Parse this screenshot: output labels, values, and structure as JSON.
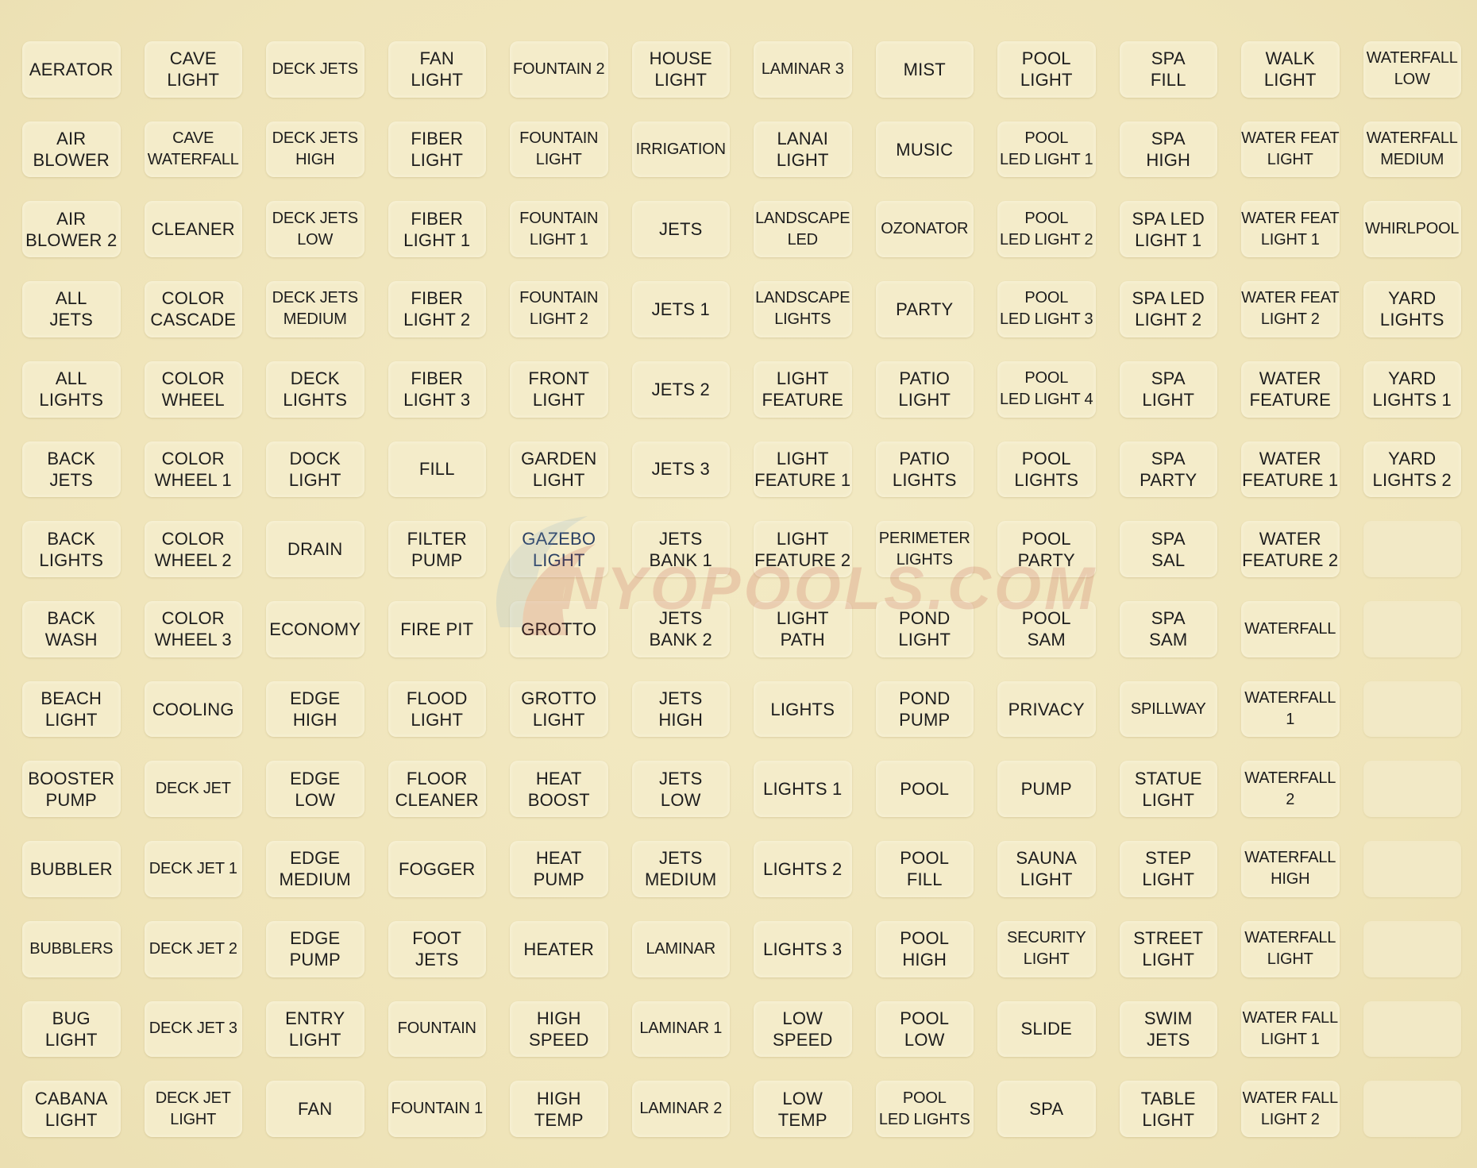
{
  "watermark": {
    "text": "INYOPOOLS.COM"
  },
  "colors": {
    "background": "#f1e7bf",
    "label": "#f4ecca",
    "text": "#1d1d1d",
    "accent_text": "#2a3f63",
    "watermark": "#b8322a"
  },
  "labels": [
    {
      "text": "AERATOR"
    },
    {
      "text": "AIR\nBLOWER"
    },
    {
      "text": "AIR\nBLOWER 2"
    },
    {
      "text": "ALL\nJETS"
    },
    {
      "text": "ALL\nLIGHTS"
    },
    {
      "text": "BACK\nJETS"
    },
    {
      "text": "BACK\nLIGHTS"
    },
    {
      "text": "BACK\nWASH"
    },
    {
      "text": "BEACH\nLIGHT"
    },
    {
      "text": "BOOSTER\nPUMP"
    },
    {
      "text": "BUBBLER"
    },
    {
      "text": "BUBBLERS"
    },
    {
      "text": "BUG\nLIGHT"
    },
    {
      "text": "CABANA\nLIGHT"
    },
    {
      "text": "CAVE\nLIGHT"
    },
    {
      "text": "CAVE\nWATERFALL"
    },
    {
      "text": "CLEANER"
    },
    {
      "text": "COLOR\nCASCADE"
    },
    {
      "text": "COLOR\nWHEEL"
    },
    {
      "text": "COLOR\nWHEEL 1"
    },
    {
      "text": "COLOR\nWHEEL 2"
    },
    {
      "text": "COLOR\nWHEEL 3"
    },
    {
      "text": "COOLING"
    },
    {
      "text": "DECK JET"
    },
    {
      "text": "DECK JET 1"
    },
    {
      "text": "DECK JET 2"
    },
    {
      "text": "DECK JET 3"
    },
    {
      "text": "DECK JET\nLIGHT"
    },
    {
      "text": "DECK JETS"
    },
    {
      "text": "DECK JETS\nHIGH"
    },
    {
      "text": "DECK JETS\nLOW"
    },
    {
      "text": "DECK JETS\nMEDIUM"
    },
    {
      "text": "DECK\nLIGHTS"
    },
    {
      "text": "DOCK\nLIGHT"
    },
    {
      "text": "DRAIN"
    },
    {
      "text": "ECONOMY"
    },
    {
      "text": "EDGE\nHIGH"
    },
    {
      "text": "EDGE\nLOW"
    },
    {
      "text": "EDGE\nMEDIUM"
    },
    {
      "text": "EDGE\nPUMP"
    },
    {
      "text": "ENTRY\nLIGHT"
    },
    {
      "text": "FAN"
    },
    {
      "text": "FAN\nLIGHT"
    },
    {
      "text": "FIBER\nLIGHT"
    },
    {
      "text": "FIBER\nLIGHT 1"
    },
    {
      "text": "FIBER\nLIGHT 2"
    },
    {
      "text": "FIBER\nLIGHT 3"
    },
    {
      "text": "FILL"
    },
    {
      "text": "FILTER\nPUMP"
    },
    {
      "text": "FIRE PIT"
    },
    {
      "text": "FLOOD\nLIGHT"
    },
    {
      "text": "FLOOR\nCLEANER"
    },
    {
      "text": "FOGGER"
    },
    {
      "text": "FOOT\nJETS"
    },
    {
      "text": "FOUNTAIN"
    },
    {
      "text": "FOUNTAIN 1"
    },
    {
      "text": "FOUNTAIN 2"
    },
    {
      "text": "FOUNTAIN\nLIGHT"
    },
    {
      "text": "FOUNTAIN\nLIGHT 1"
    },
    {
      "text": "FOUNTAIN\nLIGHT 2"
    },
    {
      "text": "FRONT\nLIGHT"
    },
    {
      "text": "GARDEN\nLIGHT"
    },
    {
      "text": "GAZEBO\nLIGHT"
    },
    {
      "text": "GROTTO"
    },
    {
      "text": "GROTTO\nLIGHT"
    },
    {
      "text": "HEAT\nBOOST"
    },
    {
      "text": "HEAT\nPUMP"
    },
    {
      "text": "HEATER"
    },
    {
      "text": "HIGH\nSPEED"
    },
    {
      "text": "HIGH\nTEMP"
    },
    {
      "text": "HOUSE\nLIGHT"
    },
    {
      "text": "IRRIGATION"
    },
    {
      "text": "JETS"
    },
    {
      "text": "JETS 1"
    },
    {
      "text": "JETS 2"
    },
    {
      "text": "JETS 3"
    },
    {
      "text": "JETS\nBANK 1"
    },
    {
      "text": "JETS\nBANK 2"
    },
    {
      "text": "JETS\nHIGH"
    },
    {
      "text": "JETS\nLOW"
    },
    {
      "text": "JETS\nMEDIUM"
    },
    {
      "text": "LAMINAR"
    },
    {
      "text": "LAMINAR 1"
    },
    {
      "text": "LAMINAR 2"
    },
    {
      "text": "LAMINAR 3"
    },
    {
      "text": "LANAI\nLIGHT"
    },
    {
      "text": "LANDSCAPE\nLED"
    },
    {
      "text": "LANDSCAPE\nLIGHTS"
    },
    {
      "text": "LIGHT\nFEATURE"
    },
    {
      "text": "LIGHT\nFEATURE 1"
    },
    {
      "text": "LIGHT\nFEATURE 2"
    },
    {
      "text": "LIGHT\nPATH"
    },
    {
      "text": "LIGHTS"
    },
    {
      "text": "LIGHTS 1"
    },
    {
      "text": "LIGHTS 2"
    },
    {
      "text": "LIGHTS 3"
    },
    {
      "text": "LOW\nSPEED"
    },
    {
      "text": "LOW\nTEMP"
    },
    {
      "text": "MIST"
    },
    {
      "text": "MUSIC"
    },
    {
      "text": "OZONATOR"
    },
    {
      "text": "PARTY"
    },
    {
      "text": "PATIO\nLIGHT"
    },
    {
      "text": "PATIO\nLIGHTS"
    },
    {
      "text": "PERIMETER\nLIGHTS"
    },
    {
      "text": "POND\nLIGHT"
    },
    {
      "text": "POND\nPUMP"
    },
    {
      "text": "POOL"
    },
    {
      "text": "POOL\nFILL"
    },
    {
      "text": "POOL\nHIGH"
    },
    {
      "text": "POOL\nLOW"
    },
    {
      "text": "POOL\nLED LIGHTS"
    },
    {
      "text": "POOL\nLIGHT"
    },
    {
      "text": "POOL\nLED LIGHT 1"
    },
    {
      "text": "POOL\nLED LIGHT 2"
    },
    {
      "text": "POOL\nLED LIGHT 3"
    },
    {
      "text": "POOL\nLED LIGHT 4"
    },
    {
      "text": "POOL\nLIGHTS"
    },
    {
      "text": "POOL\nPARTY"
    },
    {
      "text": "POOL\nSAM"
    },
    {
      "text": "PRIVACY"
    },
    {
      "text": "PUMP"
    },
    {
      "text": "SAUNA\nLIGHT"
    },
    {
      "text": "SECURITY\nLIGHT"
    },
    {
      "text": "SLIDE"
    },
    {
      "text": "SPA"
    },
    {
      "text": "SPA\nFILL"
    },
    {
      "text": "SPA\nHIGH"
    },
    {
      "text": "SPA LED\nLIGHT 1"
    },
    {
      "text": "SPA LED\nLIGHT 2"
    },
    {
      "text": "SPA\nLIGHT"
    },
    {
      "text": "SPA\nPARTY"
    },
    {
      "text": "SPA\nSAL"
    },
    {
      "text": "SPA\nSAM"
    },
    {
      "text": "SPILLWAY"
    },
    {
      "text": "STATUE\nLIGHT"
    },
    {
      "text": "STEP\nLIGHT"
    },
    {
      "text": "STREET\nLIGHT"
    },
    {
      "text": "SWIM\nJETS"
    },
    {
      "text": "TABLE\nLIGHT"
    },
    {
      "text": "WALK\nLIGHT"
    },
    {
      "text": "WATER FEAT\nLIGHT"
    },
    {
      "text": "WATER FEAT\nLIGHT 1"
    },
    {
      "text": "WATER FEAT\nLIGHT 2"
    },
    {
      "text": "WATER\nFEATURE"
    },
    {
      "text": "WATER\nFEATURE 1"
    },
    {
      "text": "WATER\nFEATURE 2"
    },
    {
      "text": "WATERFALL"
    },
    {
      "text": "WATERFALL 1"
    },
    {
      "text": "WATERFALL 2"
    },
    {
      "text": "WATERFALL\nHIGH"
    },
    {
      "text": "WATERFALL\nLIGHT"
    },
    {
      "text": "WATER FALL\nLIGHT 1"
    },
    {
      "text": "WATER FALL\nLIGHT 2"
    },
    {
      "text": "WATERFALL\nLOW"
    },
    {
      "text": "WATERFALL\nMEDIUM"
    },
    {
      "text": "WHIRLPOOL"
    },
    {
      "text": "YARD\nLIGHTS"
    },
    {
      "text": "YARD\nLIGHTS 1"
    },
    {
      "text": "YARD\nLIGHTS 2"
    },
    {
      "text": ""
    },
    {
      "text": ""
    },
    {
      "text": ""
    },
    {
      "text": ""
    },
    {
      "text": ""
    },
    {
      "text": ""
    },
    {
      "text": ""
    },
    {
      "text": ""
    }
  ]
}
